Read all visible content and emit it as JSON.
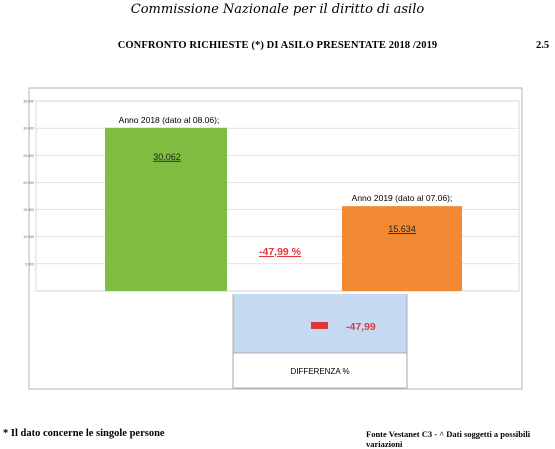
{
  "header": {
    "organization": "Commissione Nazionale per il diritto di asilo"
  },
  "page_title": "CONFRONTO RICHIESTE (*) DI ASILO PRESENTATE  2018 /2019",
  "page_number": "2.5",
  "chart_data": {
    "type": "bar",
    "categories": [
      "Anno 2018 (dato al 08.06);",
      "Anno 2019 (dato al 07.06);"
    ],
    "values": [
      30062,
      15634
    ],
    "value_labels": [
      "30.062",
      "15.634"
    ],
    "difference_label": "-47,99 %",
    "ylim": [
      0,
      35000
    ],
    "y_ticks": [
      "35.000",
      "30.000",
      "25.000",
      "20.000",
      "15.000",
      "10.000",
      "5.000",
      "-"
    ],
    "grid": true,
    "colors": {
      "bar_2018": "#7ebd3f",
      "bar_2019": "#f28a33",
      "difference": "#e3363b",
      "diff_panel": "#c5d9f1"
    },
    "difference_panel": {
      "value_label": "-47,99",
      "category_label": "DIFFERENZA %",
      "value": -47.99
    }
  },
  "footnote": "* Il dato concerne le singole persone",
  "source": "Fonte Vestanet C3 - ^ Dati soggetti a possibili variazioni"
}
